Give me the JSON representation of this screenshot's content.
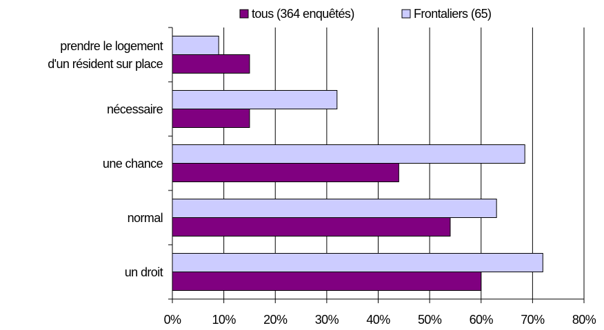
{
  "chart_data": {
    "type": "hbar",
    "categories": [
      "prendre le logement\nd'un résident sur place",
      "nécessaire",
      "une chance",
      "normal",
      "un droit"
    ],
    "series": [
      {
        "name": "tous (364 enquêtés)",
        "color": "#800080",
        "values": [
          15,
          15,
          44,
          54,
          60
        ]
      },
      {
        "name": "Frontaliers (65)",
        "color": "#ccccff",
        "values": [
          9,
          32,
          68.5,
          63,
          72
        ]
      }
    ],
    "xlim": [
      0,
      80
    ],
    "xticks": [
      {
        "value": 0,
        "label": "0%"
      },
      {
        "value": 10,
        "label": "10%"
      },
      {
        "value": 20,
        "label": "20%"
      },
      {
        "value": 30,
        "label": "30%"
      },
      {
        "value": 40,
        "label": "40%"
      },
      {
        "value": 50,
        "label": "50%"
      },
      {
        "value": 60,
        "label": "60%"
      },
      {
        "value": 70,
        "label": "70%"
      },
      {
        "value": 80,
        "label": "80%"
      }
    ],
    "grid": true,
    "legend": "top"
  }
}
